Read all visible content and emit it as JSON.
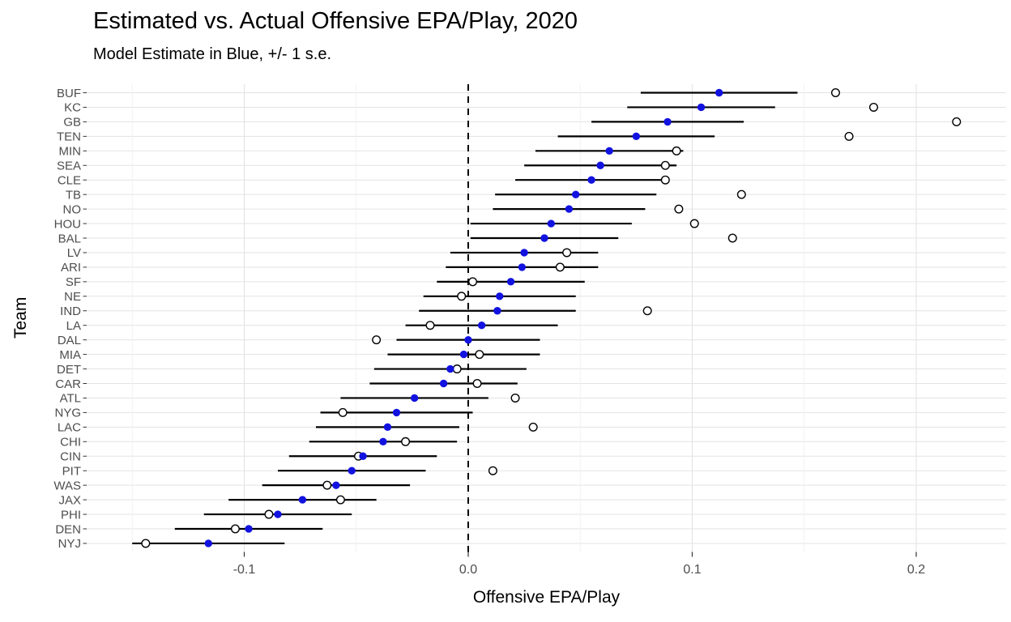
{
  "page": {
    "title": "Estimated vs. Actual Offensive EPA/Play, 2020",
    "subtitle": "Model Estimate in Blue, +/- 1 s.e."
  },
  "colors": {
    "estimate_blue": "#1212e0",
    "actual_circle_stroke": "#000000",
    "actual_circle_fill": "#ffffff",
    "errorbar": "#000000",
    "zero_line": "#000000",
    "grid_major": "#e3e3e3",
    "grid_minor": "#efefef",
    "axis_text": "#4d4d4d",
    "tick_mark": "#333333",
    "background": "#ffffff"
  },
  "chart_data": {
    "type": "scatter",
    "subtype": "horizontal-dot-plot-with-error-bars",
    "title": "Estimated vs. Actual Offensive EPA/Play, 2020",
    "subtitle": "Model Estimate in Blue, +/- 1 s.e.",
    "xlabel": "Offensive EPA/Play",
    "ylabel": "Team",
    "xlim": [
      -0.17,
      0.24
    ],
    "x_major_ticks": [
      -0.1,
      0.0,
      0.1,
      0.2
    ],
    "x_major_tick_labels": [
      "-0.1",
      "0.0",
      "0.1",
      "0.2"
    ],
    "x_minor_ticks": [
      -0.15,
      -0.05,
      0.05,
      0.15
    ],
    "zero_reference_line": 0.0,
    "series_note": "estimate = blue filled dot with +/- 1 s.e. horizontal bar; actual = open circle",
    "teams": [
      {
        "team": "BUF",
        "estimate": 0.112,
        "se": 0.035,
        "actual": 0.164
      },
      {
        "team": "KC",
        "estimate": 0.104,
        "se": 0.033,
        "actual": 0.181
      },
      {
        "team": "GB",
        "estimate": 0.089,
        "se": 0.034,
        "actual": 0.218
      },
      {
        "team": "TEN",
        "estimate": 0.075,
        "se": 0.035,
        "actual": 0.17
      },
      {
        "team": "MIN",
        "estimate": 0.063,
        "se": 0.033,
        "actual": 0.093
      },
      {
        "team": "SEA",
        "estimate": 0.059,
        "se": 0.034,
        "actual": 0.088
      },
      {
        "team": "CLE",
        "estimate": 0.055,
        "se": 0.034,
        "actual": 0.088
      },
      {
        "team": "TB",
        "estimate": 0.048,
        "se": 0.036,
        "actual": 0.122
      },
      {
        "team": "NO",
        "estimate": 0.045,
        "se": 0.034,
        "actual": 0.094
      },
      {
        "team": "HOU",
        "estimate": 0.037,
        "se": 0.036,
        "actual": 0.101
      },
      {
        "team": "BAL",
        "estimate": 0.034,
        "se": 0.033,
        "actual": 0.118
      },
      {
        "team": "LV",
        "estimate": 0.025,
        "se": 0.033,
        "actual": 0.044
      },
      {
        "team": "ARI",
        "estimate": 0.024,
        "se": 0.034,
        "actual": 0.041
      },
      {
        "team": "SF",
        "estimate": 0.019,
        "se": 0.033,
        "actual": 0.002
      },
      {
        "team": "NE",
        "estimate": 0.014,
        "se": 0.034,
        "actual": -0.003
      },
      {
        "team": "IND",
        "estimate": 0.013,
        "se": 0.035,
        "actual": 0.08
      },
      {
        "team": "LA",
        "estimate": 0.006,
        "se": 0.034,
        "actual": -0.017
      },
      {
        "team": "DAL",
        "estimate": 0.0,
        "se": 0.032,
        "actual": -0.041
      },
      {
        "team": "MIA",
        "estimate": -0.002,
        "se": 0.034,
        "actual": 0.005
      },
      {
        "team": "DET",
        "estimate": -0.008,
        "se": 0.034,
        "actual": -0.005
      },
      {
        "team": "CAR",
        "estimate": -0.011,
        "se": 0.033,
        "actual": 0.004
      },
      {
        "team": "ATL",
        "estimate": -0.024,
        "se": 0.033,
        "actual": 0.021
      },
      {
        "team": "NYG",
        "estimate": -0.032,
        "se": 0.034,
        "actual": -0.056
      },
      {
        "team": "LAC",
        "estimate": -0.036,
        "se": 0.032,
        "actual": 0.029
      },
      {
        "team": "CHI",
        "estimate": -0.038,
        "se": 0.033,
        "actual": -0.028
      },
      {
        "team": "CIN",
        "estimate": -0.047,
        "se": 0.033,
        "actual": -0.049
      },
      {
        "team": "PIT",
        "estimate": -0.052,
        "se": 0.033,
        "actual": 0.011
      },
      {
        "team": "WAS",
        "estimate": -0.059,
        "se": 0.033,
        "actual": -0.063
      },
      {
        "team": "JAX",
        "estimate": -0.074,
        "se": 0.033,
        "actual": -0.057
      },
      {
        "team": "PHI",
        "estimate": -0.085,
        "se": 0.033,
        "actual": -0.089
      },
      {
        "team": "DEN",
        "estimate": -0.098,
        "se": 0.033,
        "actual": -0.104
      },
      {
        "team": "NYJ",
        "estimate": -0.116,
        "se": 0.034,
        "actual": -0.144
      }
    ]
  }
}
